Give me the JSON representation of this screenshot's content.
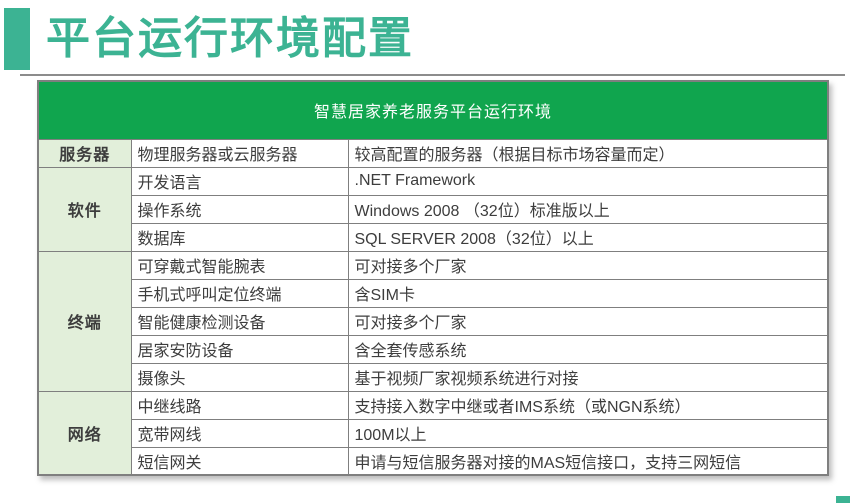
{
  "slide_title": "平台运行环境配置",
  "colors": {
    "accent_teal": "#3CB393",
    "header_green": "#10A54E",
    "group_bg": "#E2EFDA",
    "border_gray": "#7F7F7F",
    "text_dark": "#3D3D3D",
    "divider_gray": "#8C8C8C",
    "header_text": "#FFFFFF"
  },
  "table": {
    "title": "智慧居家养老服务平台运行环境",
    "groups": [
      {
        "label": "服务器",
        "rows": [
          [
            "物理服务器或云服务器",
            "较高配置的服务器（根据目标市场容量而定）"
          ]
        ]
      },
      {
        "label": "软件",
        "rows": [
          [
            "开发语言",
            ".NET Framework"
          ],
          [
            "操作系统",
            "Windows 2008 （32位）标准版以上"
          ],
          [
            "数据库",
            "SQL SERVER 2008（32位）以上"
          ]
        ]
      },
      {
        "label": "终端",
        "rows": [
          [
            "可穿戴式智能腕表",
            "可对接多个厂家"
          ],
          [
            "手机式呼叫定位终端",
            "含SIM卡"
          ],
          [
            "智能健康检测设备",
            "可对接多个厂家"
          ],
          [
            "居家安防设备",
            "含全套传感系统"
          ],
          [
            "摄像头",
            "基于视频厂家视频系统进行对接"
          ]
        ]
      },
      {
        "label": "网络",
        "rows": [
          [
            "中继线路",
            "支持接入数字中继或者IMS系统（或NGN系统）"
          ],
          [
            "宽带网线",
            "100M以上"
          ],
          [
            "短信网关",
            "申请与短信服务器对接的MAS短信接口，支持三网短信"
          ]
        ]
      }
    ]
  }
}
